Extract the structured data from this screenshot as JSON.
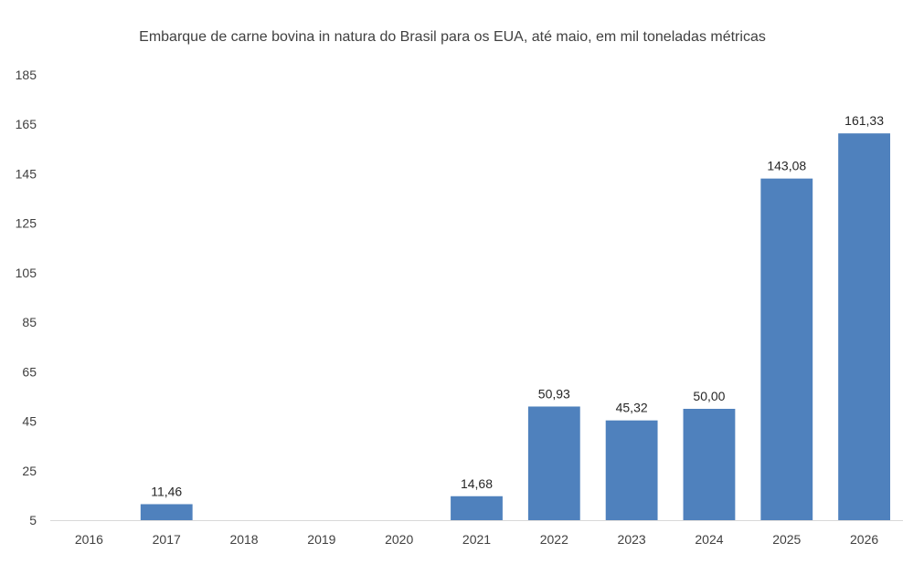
{
  "chart_data": {
    "type": "bar",
    "title": "Embarque de carne bovina in natura do Brasil para os EUA, até maio, em mil toneladas métricas",
    "xlabel": "",
    "ylabel": "",
    "categories": [
      "2016",
      "2017",
      "2018",
      "2019",
      "2020",
      "2021",
      "2022",
      "2023",
      "2024",
      "2025",
      "2026"
    ],
    "values": [
      null,
      11.46,
      null,
      null,
      null,
      14.68,
      50.93,
      45.32,
      50.0,
      143.08,
      161.33
    ],
    "data_labels": [
      "",
      "11,46",
      "",
      "",
      "",
      "14,68",
      "50,93",
      "45,32",
      "50,00",
      "143,08",
      "161,33"
    ],
    "y_ticks": [
      "5",
      "25",
      "45",
      "65",
      "85",
      "105",
      "125",
      "145",
      "165",
      "185"
    ],
    "ylim": [
      5,
      185
    ],
    "grid": false,
    "legend": "none",
    "colors": {
      "bar": "#4F81BD",
      "axis": "#D9D9D9",
      "text": "#404040"
    }
  }
}
